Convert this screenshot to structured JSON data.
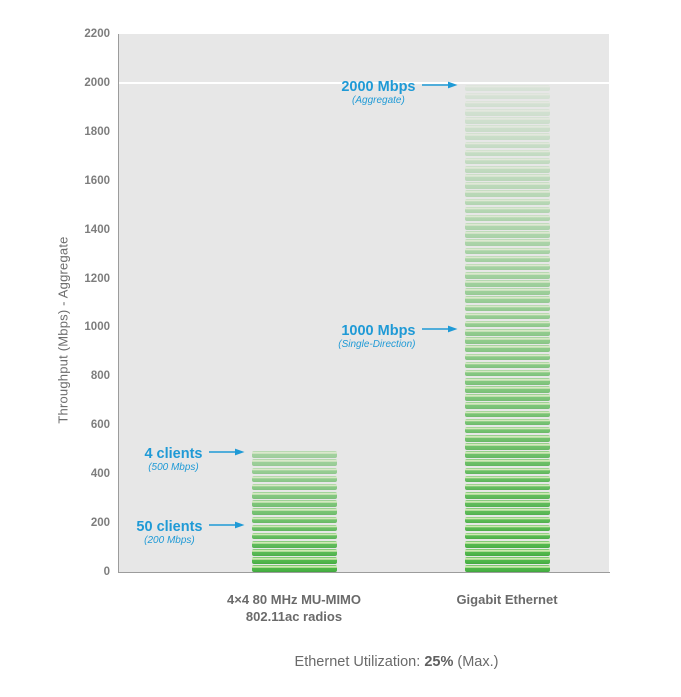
{
  "chart_data": {
    "type": "bar",
    "title": "",
    "xlabel": "",
    "ylabel": "Throughput (Mbps) - Aggregate",
    "units": "Mbps",
    "ylim": [
      0,
      2200
    ],
    "ytick_step": 200,
    "yticks": [
      2200,
      2000,
      1800,
      1600,
      1400,
      1200,
      1000,
      800,
      600,
      400,
      200,
      0
    ],
    "categories": [
      "4×4 80 MHz MU-MIMO\n802.11ac radios",
      "Gigabit Ethernet"
    ],
    "values": [
      500,
      2000
    ],
    "gridlines": [
      2000
    ],
    "grid_on": false,
    "legend_position": "none",
    "bar_style": "stacked-horizontal-stripes-fading-upward",
    "bar_color": "#4db748",
    "plot_background": "#e7e7e7",
    "gridline_color": "#ffffff",
    "annotation_color": "#1f9ad6",
    "annotations": [
      {
        "bar": 1,
        "value": 2000,
        "label": "2000 Mbps",
        "sub": "(Aggregate)"
      },
      {
        "bar": 1,
        "value": 1000,
        "label": "1000 Mbps",
        "sub": "(Single-Direction)"
      },
      {
        "bar": 0,
        "value": 500,
        "label": "4 clients",
        "sub": "(500 Mbps)"
      },
      {
        "bar": 0,
        "value": 200,
        "label": "50 clients",
        "sub": "(200 Mbps)"
      }
    ],
    "caption": {
      "prefix": "Ethernet Utilization: ",
      "bold": "25%",
      "suffix": " (Max.)"
    }
  }
}
